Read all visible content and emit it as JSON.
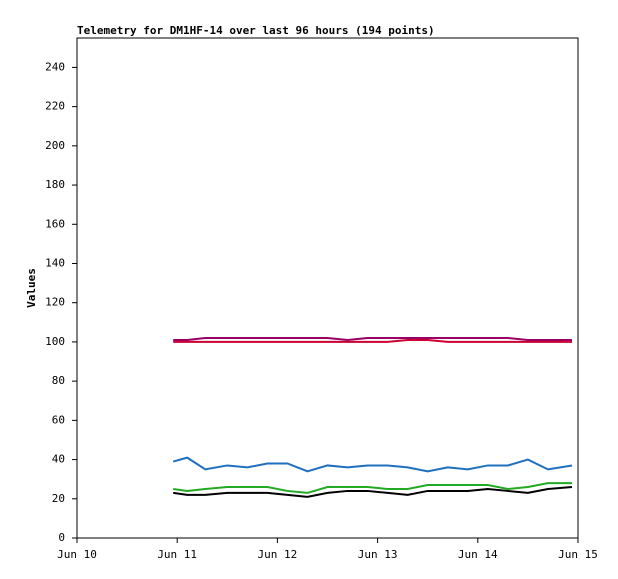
{
  "chart_data": {
    "type": "line",
    "title": "Telemetry for DM1HF-14 over last 96 hours (194 points)",
    "y_label": "Values",
    "x": [
      10.96,
      11.1,
      11.28,
      11.5,
      11.7,
      11.9,
      12.1,
      12.3,
      12.5,
      12.7,
      12.9,
      13.1,
      13.3,
      13.5,
      13.7,
      13.9,
      14.1,
      14.3,
      14.5,
      14.7,
      14.94
    ],
    "series": [
      {
        "color": "#990066",
        "values": [
          101,
          101,
          102,
          102,
          102,
          102,
          102,
          102,
          102,
          101,
          102,
          102,
          102,
          102,
          102,
          102,
          102,
          102,
          101,
          101,
          101
        ]
      },
      {
        "color": "#cc0033",
        "values": [
          100,
          100,
          100,
          100,
          100,
          100,
          100,
          100,
          100,
          100,
          100,
          100,
          101,
          101,
          100,
          100,
          100,
          100,
          100,
          100,
          100
        ]
      },
      {
        "color": "#1f6fbf",
        "values": [
          39,
          41,
          35,
          37,
          36,
          38,
          38,
          34,
          37,
          36,
          37,
          37,
          36,
          34,
          36,
          35,
          37,
          37,
          40,
          35,
          37
        ]
      },
      {
        "color": "#22aa22",
        "values": [
          25,
          24,
          25,
          26,
          26,
          26,
          24,
          23,
          26,
          26,
          26,
          25,
          25,
          27,
          27,
          27,
          27,
          25,
          26,
          28,
          28
        ]
      },
      {
        "color": "#000000",
        "values": [
          23,
          22,
          22,
          23,
          23,
          23,
          22,
          21,
          23,
          24,
          24,
          23,
          22,
          24,
          24,
          24,
          25,
          24,
          23,
          25,
          26
        ]
      }
    ],
    "xlim": [
      10,
      15
    ],
    "xticks": [
      {
        "value": 10,
        "label": "Jun 10"
      },
      {
        "value": 11,
        "label": "Jun 11"
      },
      {
        "value": 12,
        "label": "Jun 12"
      },
      {
        "value": 13,
        "label": "Jun 13"
      },
      {
        "value": 14,
        "label": "Jun 14"
      },
      {
        "value": 15,
        "label": "Jun 15"
      }
    ],
    "ylim": [
      0,
      255
    ],
    "yticks": [
      0,
      20,
      40,
      60,
      80,
      100,
      120,
      140,
      160,
      180,
      200,
      220,
      240
    ]
  }
}
